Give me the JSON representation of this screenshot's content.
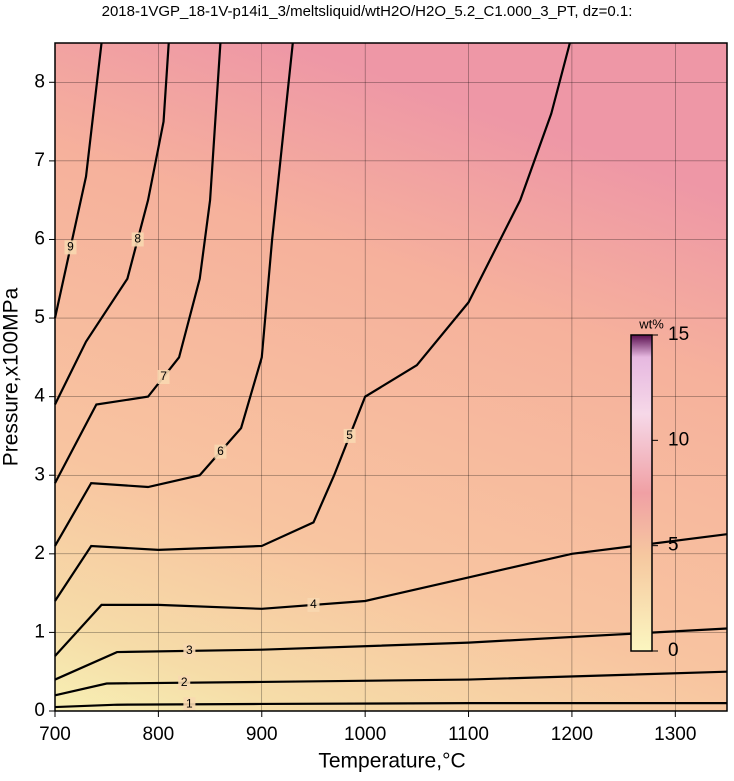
{
  "chart_data": {
    "type": "contour",
    "title": "2018-1VGP_18-1V-p14i1_3/meltsliquid/wtH2O/H2O_5.2_C1.000_3_PT, dz=0.1:",
    "xlabel": "Temperature,°C",
    "ylabel": "Pressure,x100MPa",
    "xlim": [
      700,
      1350
    ],
    "ylim": [
      0,
      8.5
    ],
    "xticks": [
      700,
      800,
      900,
      1000,
      1100,
      1200,
      1300
    ],
    "yticks": [
      0,
      1,
      2,
      3,
      4,
      5,
      6,
      7,
      8
    ],
    "grid": true,
    "contours": [
      {
        "level": 1,
        "x": [
          700,
          760,
          900,
          1100,
          1350
        ],
        "y": [
          0.05,
          0.08,
          0.09,
          0.1,
          0.1
        ]
      },
      {
        "level": 2,
        "x": [
          700,
          750,
          900,
          1100,
          1350
        ],
        "y": [
          0.2,
          0.35,
          0.37,
          0.4,
          0.5
        ]
      },
      {
        "level": 3,
        "x": [
          700,
          760,
          900,
          1100,
          1350
        ],
        "y": [
          0.4,
          0.75,
          0.78,
          0.87,
          1.05
        ]
      },
      {
        "level": 4,
        "x": [
          700,
          745,
          800,
          900,
          1000,
          1100,
          1200,
          1350
        ],
        "y": [
          0.7,
          1.35,
          1.35,
          1.3,
          1.4,
          1.7,
          2.0,
          2.25
        ]
      },
      {
        "level": 5,
        "x": [
          700,
          735,
          800,
          900,
          950,
          970,
          1000,
          1050,
          1100,
          1150,
          1180,
          1198
        ],
        "y": [
          1.4,
          2.1,
          2.05,
          2.1,
          2.4,
          3.0,
          4.0,
          4.4,
          5.2,
          6.5,
          7.6,
          8.5
        ]
      },
      {
        "level": 6,
        "x": [
          700,
          735,
          790,
          840,
          880,
          900,
          910,
          930
        ],
        "y": [
          2.1,
          2.9,
          2.85,
          3.0,
          3.6,
          4.5,
          6.0,
          8.5
        ]
      },
      {
        "level": 7,
        "x": [
          700,
          740,
          790,
          820,
          840,
          850,
          860
        ],
        "y": [
          2.9,
          3.9,
          4.0,
          4.5,
          5.5,
          6.5,
          8.5
        ]
      },
      {
        "level": 8,
        "x": [
          700,
          730,
          770,
          790,
          805,
          810
        ],
        "y": [
          3.9,
          4.7,
          5.5,
          6.5,
          7.5,
          8.5
        ]
      },
      {
        "level": 9,
        "x": [
          700,
          730,
          745
        ],
        "y": [
          5.0,
          6.8,
          8.5
        ]
      }
    ],
    "colorbar": {
      "label": "wt%",
      "lim": [
        0,
        15
      ],
      "ticks": [
        0,
        5,
        10,
        15
      ]
    }
  }
}
